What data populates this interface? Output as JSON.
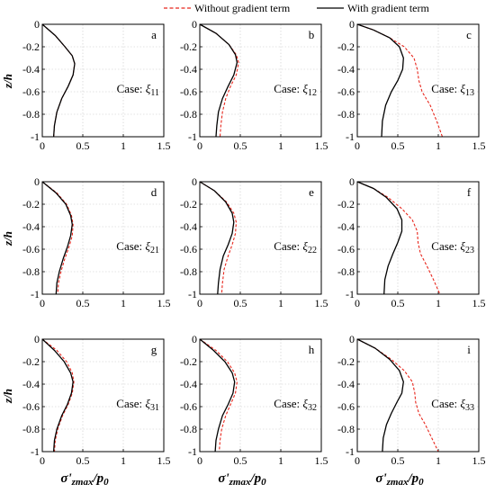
{
  "legend": {
    "entries": [
      {
        "label": "Without gradient term",
        "color": "#e8261c",
        "style": "dashed"
      },
      {
        "label": "With gradient term",
        "color": "#000000",
        "style": "solid"
      }
    ]
  },
  "shared_axes": {
    "ylabel": "z/h",
    "xlabel_main": "σ'",
    "xlabel_sub": "zmax",
    "xlabel_after": "/p",
    "xlabel_after_sub": "0",
    "xlim": [
      0,
      1.5
    ],
    "ylim": [
      -1,
      0
    ],
    "xticks": [
      0,
      0.5,
      1,
      1.5
    ],
    "xtick_labels": [
      "0",
      "0.5",
      "1",
      "1.5"
    ],
    "yticks": [
      0,
      -0.2,
      -0.4,
      -0.6,
      -0.8,
      -1
    ],
    "ytick_labels": [
      "0",
      "-0.2",
      "-0.4",
      "-0.6",
      "-0.8",
      "-1"
    ]
  },
  "chart_data": [
    {
      "type": "line",
      "panel": "a",
      "case_prefix": "Case:",
      "case_symbol": "ξ",
      "case_sub": "11",
      "series": [
        {
          "name": "Without gradient term",
          "x": [
            0,
            0.16,
            0.28,
            0.37,
            0.4,
            0.38,
            0.32,
            0.24,
            0.18,
            0.15,
            0.14
          ],
          "y": [
            0,
            -0.1,
            -0.2,
            -0.28,
            -0.35,
            -0.45,
            -0.55,
            -0.66,
            -0.78,
            -0.9,
            -1
          ]
        },
        {
          "name": "With gradient term",
          "x": [
            0,
            0.16,
            0.28,
            0.37,
            0.4,
            0.38,
            0.32,
            0.24,
            0.18,
            0.15,
            0.14
          ],
          "y": [
            0,
            -0.1,
            -0.2,
            -0.28,
            -0.35,
            -0.45,
            -0.55,
            -0.66,
            -0.78,
            -0.9,
            -1
          ]
        }
      ]
    },
    {
      "type": "line",
      "panel": "b",
      "case_prefix": "Case:",
      "case_symbol": "ξ",
      "case_sub": "12",
      "series": [
        {
          "name": "Without gradient term",
          "x": [
            0,
            0.2,
            0.36,
            0.45,
            0.48,
            0.45,
            0.38,
            0.32,
            0.28,
            0.26,
            0.25
          ],
          "y": [
            0,
            -0.08,
            -0.18,
            -0.27,
            -0.34,
            -0.45,
            -0.55,
            -0.66,
            -0.78,
            -0.9,
            -1
          ]
        },
        {
          "name": "With gradient term",
          "x": [
            0,
            0.2,
            0.36,
            0.44,
            0.46,
            0.42,
            0.35,
            0.28,
            0.23,
            0.21,
            0.2
          ],
          "y": [
            0,
            -0.08,
            -0.18,
            -0.27,
            -0.34,
            -0.45,
            -0.55,
            -0.66,
            -0.78,
            -0.9,
            -1
          ]
        }
      ]
    },
    {
      "type": "line",
      "panel": "c",
      "case_prefix": "Case:",
      "case_symbol": "ξ",
      "case_sub": "13",
      "series": [
        {
          "name": "Without gradient term",
          "x": [
            0,
            0.2,
            0.4,
            0.58,
            0.7,
            0.74,
            0.76,
            0.8,
            0.9,
            0.98,
            1.05
          ],
          "y": [
            0,
            -0.05,
            -0.12,
            -0.2,
            -0.3,
            -0.4,
            -0.5,
            -0.6,
            -0.72,
            -0.86,
            -1
          ]
        },
        {
          "name": "With gradient term",
          "x": [
            0,
            0.2,
            0.4,
            0.52,
            0.57,
            0.56,
            0.5,
            0.42,
            0.35,
            0.31,
            0.3
          ],
          "y": [
            0,
            -0.05,
            -0.12,
            -0.2,
            -0.3,
            -0.4,
            -0.5,
            -0.6,
            -0.72,
            -0.86,
            -1
          ]
        }
      ]
    },
    {
      "type": "line",
      "panel": "d",
      "case_prefix": "Case:",
      "case_symbol": "ξ",
      "case_sub": "21",
      "series": [
        {
          "name": "Without gradient term",
          "x": [
            0,
            0.18,
            0.3,
            0.36,
            0.38,
            0.37,
            0.33,
            0.28,
            0.23,
            0.2,
            0.19
          ],
          "y": [
            0,
            -0.1,
            -0.2,
            -0.3,
            -0.38,
            -0.48,
            -0.58,
            -0.68,
            -0.8,
            -0.9,
            -1
          ]
        },
        {
          "name": "With gradient term",
          "x": [
            0,
            0.17,
            0.29,
            0.35,
            0.37,
            0.35,
            0.31,
            0.26,
            0.21,
            0.18,
            0.17
          ],
          "y": [
            0,
            -0.1,
            -0.2,
            -0.3,
            -0.38,
            -0.48,
            -0.58,
            -0.68,
            -0.8,
            -0.9,
            -1
          ]
        }
      ]
    },
    {
      "type": "line",
      "panel": "e",
      "case_prefix": "Case:",
      "case_symbol": "ξ",
      "case_sub": "22",
      "series": [
        {
          "name": "Without gradient term",
          "x": [
            0,
            0.18,
            0.33,
            0.42,
            0.45,
            0.44,
            0.4,
            0.35,
            0.3,
            0.28,
            0.27
          ],
          "y": [
            0,
            -0.08,
            -0.18,
            -0.28,
            -0.36,
            -0.46,
            -0.56,
            -0.66,
            -0.78,
            -0.9,
            -1
          ]
        },
        {
          "name": "With gradient term",
          "x": [
            0,
            0.18,
            0.32,
            0.4,
            0.42,
            0.4,
            0.35,
            0.29,
            0.25,
            0.23,
            0.22
          ],
          "y": [
            0,
            -0.08,
            -0.18,
            -0.28,
            -0.36,
            -0.46,
            -0.56,
            -0.66,
            -0.78,
            -0.9,
            -1
          ]
        }
      ]
    },
    {
      "type": "line",
      "panel": "f",
      "case_prefix": "Case:",
      "case_symbol": "ξ",
      "case_sub": "23",
      "series": [
        {
          "name": "Without gradient term",
          "x": [
            0,
            0.2,
            0.38,
            0.55,
            0.68,
            0.74,
            0.75,
            0.78,
            0.86,
            0.94,
            1.02
          ],
          "y": [
            0,
            -0.06,
            -0.14,
            -0.24,
            -0.34,
            -0.44,
            -0.54,
            -0.64,
            -0.75,
            -0.87,
            -1
          ]
        },
        {
          "name": "With gradient term",
          "x": [
            0,
            0.2,
            0.36,
            0.49,
            0.55,
            0.55,
            0.5,
            0.44,
            0.38,
            0.34,
            0.33
          ],
          "y": [
            0,
            -0.06,
            -0.14,
            -0.24,
            -0.34,
            -0.44,
            -0.54,
            -0.64,
            -0.75,
            -0.87,
            -1
          ]
        }
      ]
    },
    {
      "type": "line",
      "panel": "g",
      "case_prefix": "Case:",
      "case_symbol": "ξ",
      "case_sub": "31",
      "series": [
        {
          "name": "Without gradient term",
          "x": [
            0,
            0.18,
            0.3,
            0.37,
            0.39,
            0.37,
            0.32,
            0.25,
            0.19,
            0.16,
            0.15
          ],
          "y": [
            0,
            -0.1,
            -0.2,
            -0.3,
            -0.38,
            -0.48,
            -0.58,
            -0.68,
            -0.8,
            -0.9,
            -1
          ]
        },
        {
          "name": "With gradient term",
          "x": [
            0,
            0.15,
            0.27,
            0.35,
            0.38,
            0.36,
            0.31,
            0.24,
            0.18,
            0.15,
            0.14
          ],
          "y": [
            0,
            -0.1,
            -0.2,
            -0.3,
            -0.38,
            -0.48,
            -0.58,
            -0.68,
            -0.8,
            -0.9,
            -1
          ]
        }
      ]
    },
    {
      "type": "line",
      "panel": "h",
      "case_prefix": "Case:",
      "case_symbol": "ξ",
      "case_sub": "32",
      "series": [
        {
          "name": "Without gradient term",
          "x": [
            0,
            0.2,
            0.34,
            0.43,
            0.46,
            0.44,
            0.38,
            0.32,
            0.27,
            0.25,
            0.24
          ],
          "y": [
            0,
            -0.1,
            -0.2,
            -0.3,
            -0.38,
            -0.48,
            -0.58,
            -0.68,
            -0.8,
            -0.9,
            -1
          ]
        },
        {
          "name": "With gradient term",
          "x": [
            0,
            0.17,
            0.31,
            0.4,
            0.43,
            0.41,
            0.35,
            0.28,
            0.23,
            0.2,
            0.19
          ],
          "y": [
            0,
            -0.1,
            -0.2,
            -0.3,
            -0.38,
            -0.48,
            -0.58,
            -0.68,
            -0.8,
            -0.9,
            -1
          ]
        }
      ]
    },
    {
      "type": "line",
      "panel": "i",
      "case_prefix": "Case:",
      "case_symbol": "ξ",
      "case_sub": "33",
      "series": [
        {
          "name": "Without gradient term",
          "x": [
            0,
            0.22,
            0.42,
            0.58,
            0.68,
            0.71,
            0.72,
            0.76,
            0.84,
            0.92,
            1.0
          ],
          "y": [
            0,
            -0.08,
            -0.18,
            -0.28,
            -0.38,
            -0.48,
            -0.56,
            -0.66,
            -0.76,
            -0.88,
            -1
          ]
        },
        {
          "name": "With gradient term",
          "x": [
            0,
            0.22,
            0.4,
            0.52,
            0.57,
            0.55,
            0.49,
            0.42,
            0.36,
            0.32,
            0.31
          ],
          "y": [
            0,
            -0.08,
            -0.18,
            -0.28,
            -0.38,
            -0.48,
            -0.56,
            -0.66,
            -0.76,
            -0.88,
            -1
          ]
        }
      ]
    }
  ]
}
